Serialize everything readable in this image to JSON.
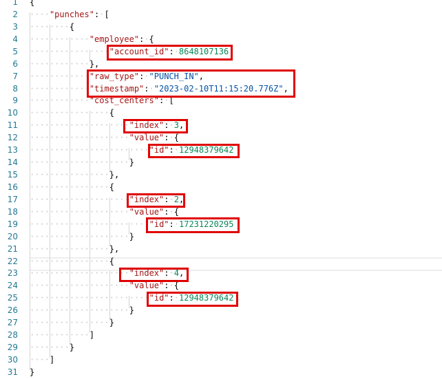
{
  "editor": {
    "current_line": 22,
    "highlight_color": "#e00000",
    "lines": [
      {
        "indent": 0,
        "tokens": [
          [
            "{",
            "p"
          ]
        ]
      },
      {
        "indent": 1,
        "tokens": [
          [
            "\"punches\"",
            "key"
          ],
          [
            ": [",
            "p"
          ]
        ]
      },
      {
        "indent": 2,
        "tokens": [
          [
            "{",
            "p"
          ]
        ]
      },
      {
        "indent": 3,
        "tokens": [
          [
            "\"employee\"",
            "key"
          ],
          [
            ": {",
            "p"
          ]
        ]
      },
      {
        "indent": 4,
        "tokens": [
          [
            "\"account_id\"",
            "key"
          ],
          [
            ": ",
            "p"
          ],
          [
            "8648107136",
            "num"
          ]
        ]
      },
      {
        "indent": 3,
        "tokens": [
          [
            "},",
            "p"
          ]
        ]
      },
      {
        "indent": 3,
        "tokens": [
          [
            "\"raw_type\"",
            "key"
          ],
          [
            ": ",
            "p"
          ],
          [
            "\"PUNCH_IN\"",
            "str"
          ],
          [
            ",",
            "p"
          ]
        ]
      },
      {
        "indent": 3,
        "tokens": [
          [
            "\"timestamp\"",
            "key"
          ],
          [
            ": ",
            "p"
          ],
          [
            "\"2023-02-10T11:15:20.776Z\"",
            "str"
          ],
          [
            ",",
            "p"
          ]
        ]
      },
      {
        "indent": 3,
        "tokens": [
          [
            "\"cost_centers\"",
            "key"
          ],
          [
            ": [",
            "p"
          ]
        ]
      },
      {
        "indent": 4,
        "tokens": [
          [
            "{",
            "p"
          ]
        ]
      },
      {
        "indent": 5,
        "tokens": [
          [
            "\"index\"",
            "key"
          ],
          [
            ": ",
            "p"
          ],
          [
            "3",
            "num"
          ],
          [
            ",",
            "p"
          ]
        ]
      },
      {
        "indent": 5,
        "tokens": [
          [
            "\"value\"",
            "key"
          ],
          [
            ": {",
            "p"
          ]
        ]
      },
      {
        "indent": 6,
        "tokens": [
          [
            "\"id\"",
            "key"
          ],
          [
            ": ",
            "p"
          ],
          [
            "12948379642",
            "num"
          ]
        ]
      },
      {
        "indent": 5,
        "tokens": [
          [
            "}",
            "p"
          ]
        ]
      },
      {
        "indent": 4,
        "tokens": [
          [
            "},",
            "p"
          ]
        ]
      },
      {
        "indent": 4,
        "tokens": [
          [
            "{",
            "p"
          ]
        ]
      },
      {
        "indent": 5,
        "tokens": [
          [
            "\"index\"",
            "key"
          ],
          [
            ": ",
            "p"
          ],
          [
            "2",
            "num"
          ],
          [
            ",",
            "p"
          ]
        ]
      },
      {
        "indent": 5,
        "tokens": [
          [
            "\"value\"",
            "key"
          ],
          [
            ": {",
            "p"
          ]
        ]
      },
      {
        "indent": 6,
        "tokens": [
          [
            "\"id\"",
            "key"
          ],
          [
            ": ",
            "p"
          ],
          [
            "17231220295",
            "num"
          ]
        ]
      },
      {
        "indent": 5,
        "tokens": [
          [
            "}",
            "p"
          ]
        ]
      },
      {
        "indent": 4,
        "tokens": [
          [
            "},",
            "p"
          ]
        ]
      },
      {
        "indent": 4,
        "tokens": [
          [
            "{",
            "p"
          ]
        ]
      },
      {
        "indent": 5,
        "tokens": [
          [
            "\"index\"",
            "key"
          ],
          [
            ": ",
            "p"
          ],
          [
            "4",
            "num"
          ],
          [
            ",",
            "p"
          ]
        ]
      },
      {
        "indent": 5,
        "tokens": [
          [
            "\"value\"",
            "key"
          ],
          [
            ": {",
            "p"
          ]
        ]
      },
      {
        "indent": 6,
        "tokens": [
          [
            "\"id\"",
            "key"
          ],
          [
            ": ",
            "p"
          ],
          [
            "12948379642",
            "num"
          ]
        ]
      },
      {
        "indent": 5,
        "tokens": [
          [
            "}",
            "p"
          ]
        ]
      },
      {
        "indent": 4,
        "tokens": [
          [
            "}",
            "p"
          ]
        ]
      },
      {
        "indent": 3,
        "tokens": [
          [
            "]",
            "p"
          ]
        ]
      },
      {
        "indent": 2,
        "tokens": [
          [
            "}",
            "p"
          ]
        ]
      },
      {
        "indent": 1,
        "tokens": [
          [
            "]",
            "p"
          ]
        ]
      },
      {
        "indent": 0,
        "tokens": [
          [
            "}",
            "p"
          ]
        ]
      }
    ]
  }
}
